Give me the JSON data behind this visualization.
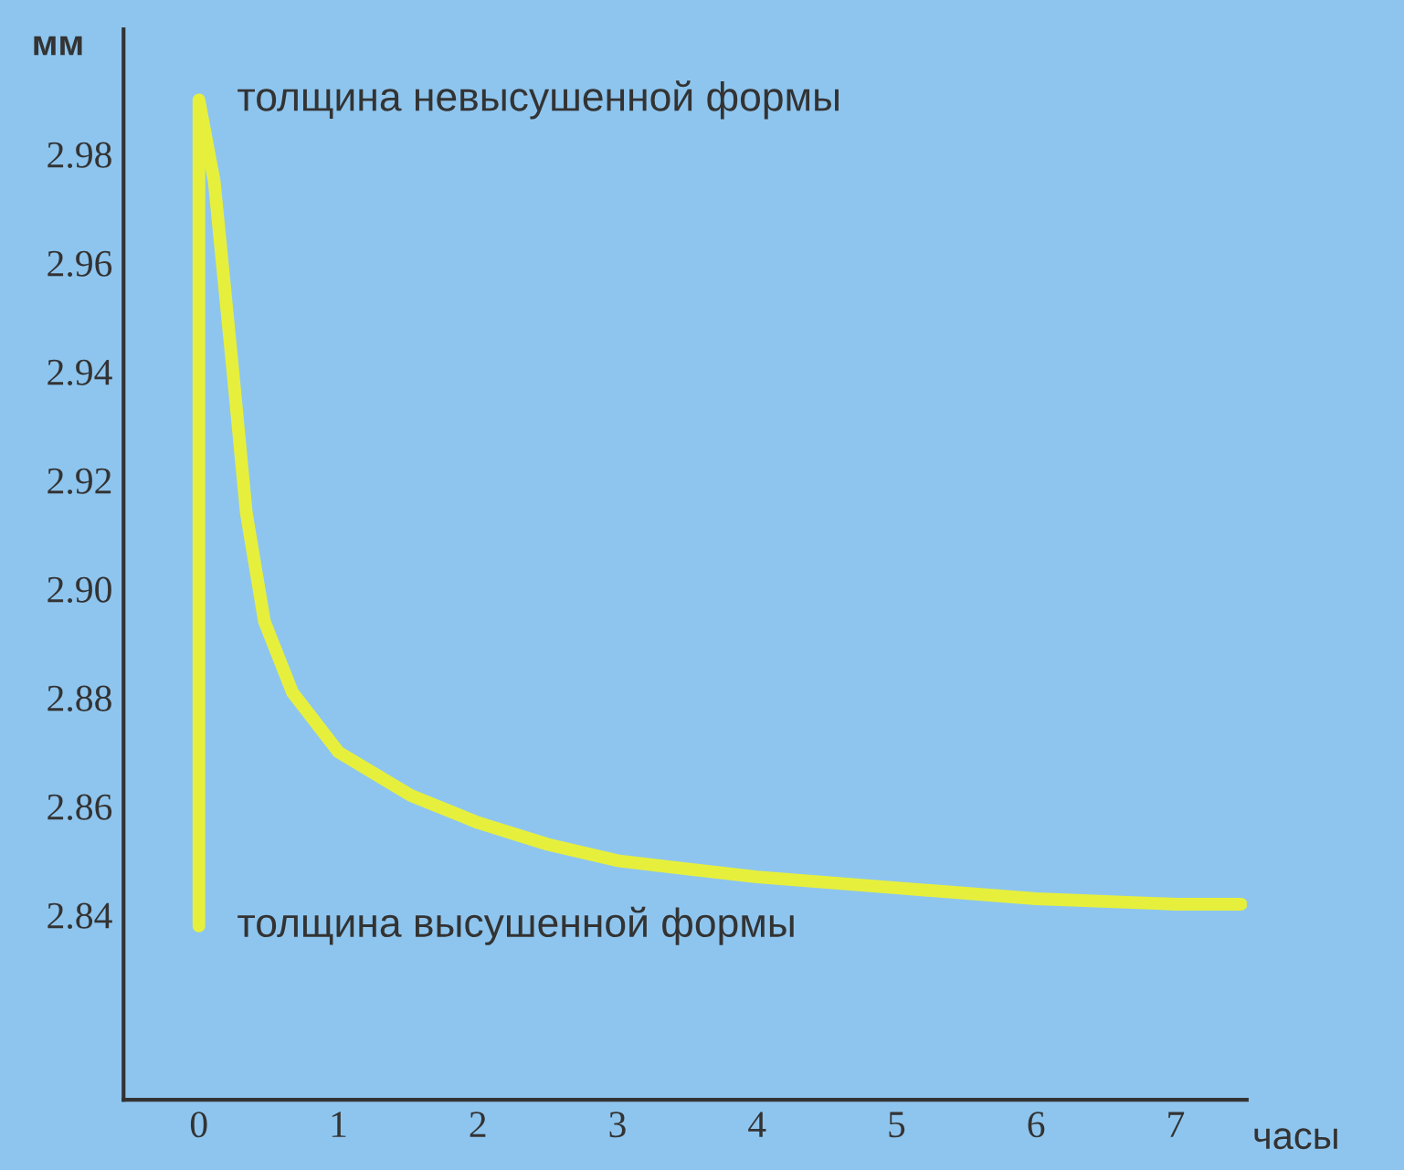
{
  "chart_data": {
    "type": "line",
    "ylabel": "мм",
    "xlabel": "часы",
    "x": [
      0,
      0,
      0.11,
      0.24,
      0.34,
      0.47,
      0.67,
      1.0,
      1.52,
      2.0,
      2.5,
      3.0,
      4.0,
      5.0,
      6.0,
      7.0,
      7.47
    ],
    "series": [
      {
        "color": "#e6f03c",
        "values": [
          2.838,
          2.99,
          2.975,
          2.941,
          2.914,
          2.894,
          2.881,
          2.87,
          2.862,
          2.857,
          2.853,
          2.85,
          2.847,
          2.845,
          2.843,
          2.842,
          2.842
        ]
      }
    ],
    "xlim": [
      -0.54,
      7.51
    ],
    "ylim": [
      2.806,
      3.003
    ],
    "xticks": [
      0,
      1,
      2,
      3,
      4,
      5,
      6,
      7
    ],
    "yticks": [
      {
        "value": 2.84,
        "label": "2.84"
      },
      {
        "value": 2.86,
        "label": "2.86"
      },
      {
        "value": 2.88,
        "label": "2.88"
      },
      {
        "value": 2.9,
        "label": "2.90"
      },
      {
        "value": 2.92,
        "label": "2.92"
      },
      {
        "value": 2.94,
        "label": "2.94"
      },
      {
        "value": 2.96,
        "label": "2.96"
      },
      {
        "value": 2.98,
        "label": "2.98"
      }
    ],
    "annotations": [
      {
        "text": "толщина невысушенной формы",
        "x": 0,
        "y": 2.99
      },
      {
        "text": "толщина высушенной формы",
        "x": 0,
        "y": 2.838
      }
    ],
    "grid": false,
    "legend": false
  }
}
